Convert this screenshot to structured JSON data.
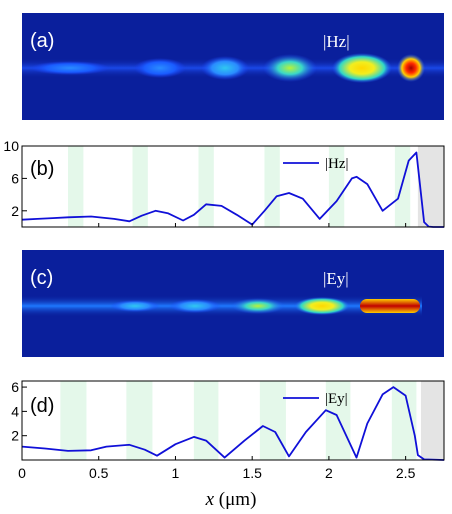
{
  "figure": {
    "panel_a": {
      "label": "(a)",
      "field_label": "|Hz|"
    },
    "panel_c": {
      "label": "(c)",
      "field_label": "|Ey|"
    }
  },
  "colors": {
    "curve": "#1010d8",
    "stripe": "#e4f8ea",
    "shade": "#e4e4e4",
    "map_background": "#0a1f9c"
  },
  "chart_data": [
    {
      "type": "line",
      "panel": "(b)",
      "series": [
        {
          "name": "|Hz|",
          "x": [
            0,
            0.1,
            0.2,
            0.3,
            0.45,
            0.6,
            0.7,
            0.78,
            0.87,
            0.95,
            1.05,
            1.12,
            1.2,
            1.3,
            1.4,
            1.5,
            1.58,
            1.66,
            1.74,
            1.83,
            1.94,
            2.05,
            2.15,
            2.18,
            2.25,
            2.35,
            2.45,
            2.52,
            2.57,
            2.62,
            2.65,
            2.68,
            2.75
          ],
          "values": [
            0.9,
            1.0,
            1.1,
            1.2,
            1.3,
            1.0,
            0.7,
            1.4,
            2.0,
            1.7,
            0.8,
            1.5,
            2.8,
            2.6,
            1.5,
            0.3,
            2.0,
            3.8,
            4.2,
            3.5,
            1.0,
            3.2,
            6.0,
            6.2,
            5.3,
            2.0,
            3.5,
            8.2,
            9.2,
            0.6,
            0.05,
            0.0,
            0.0
          ]
        }
      ],
      "yticks": [
        2,
        6,
        10
      ],
      "ylim": [
        0,
        10
      ],
      "stripes": [
        [
          0.3,
          0.4
        ],
        [
          0.72,
          0.82
        ],
        [
          1.15,
          1.25
        ],
        [
          1.58,
          1.68
        ],
        [
          2.0,
          2.1
        ],
        [
          2.43,
          2.53
        ]
      ],
      "shaded": [
        2.58,
        2.75
      ],
      "legend": "top-right"
    },
    {
      "type": "line",
      "panel": "(d)",
      "series": [
        {
          "name": "|Ey|",
          "x": [
            0,
            0.15,
            0.3,
            0.45,
            0.55,
            0.7,
            0.8,
            0.88,
            1.0,
            1.12,
            1.2,
            1.32,
            1.45,
            1.57,
            1.65,
            1.74,
            1.85,
            1.98,
            2.05,
            2.18,
            2.25,
            2.35,
            2.42,
            2.5,
            2.56,
            2.58,
            2.62,
            2.75
          ],
          "values": [
            1.1,
            0.95,
            0.75,
            0.8,
            1.1,
            1.25,
            0.85,
            0.35,
            1.3,
            1.9,
            1.6,
            0.2,
            1.6,
            2.8,
            2.3,
            0.3,
            2.3,
            4.1,
            3.7,
            0.2,
            3.0,
            5.4,
            6.0,
            5.3,
            2.0,
            0.4,
            0.05,
            0.0
          ]
        }
      ],
      "yticks": [
        2,
        4,
        6
      ],
      "ylim": [
        0,
        6.5
      ],
      "stripes": [
        [
          0.25,
          0.42
        ],
        [
          0.68,
          0.85
        ],
        [
          1.12,
          1.28
        ],
        [
          1.55,
          1.72
        ],
        [
          1.98,
          2.14
        ],
        [
          2.41,
          2.57
        ]
      ],
      "shaded": [
        2.6,
        2.75
      ],
      "legend": "top-right"
    }
  ],
  "axis": {
    "xticks": [
      "0",
      "0.5",
      "1",
      "1.5",
      "2",
      "2.5"
    ],
    "xlabel_var": "x",
    "xlabel_unit": " (μm)"
  }
}
